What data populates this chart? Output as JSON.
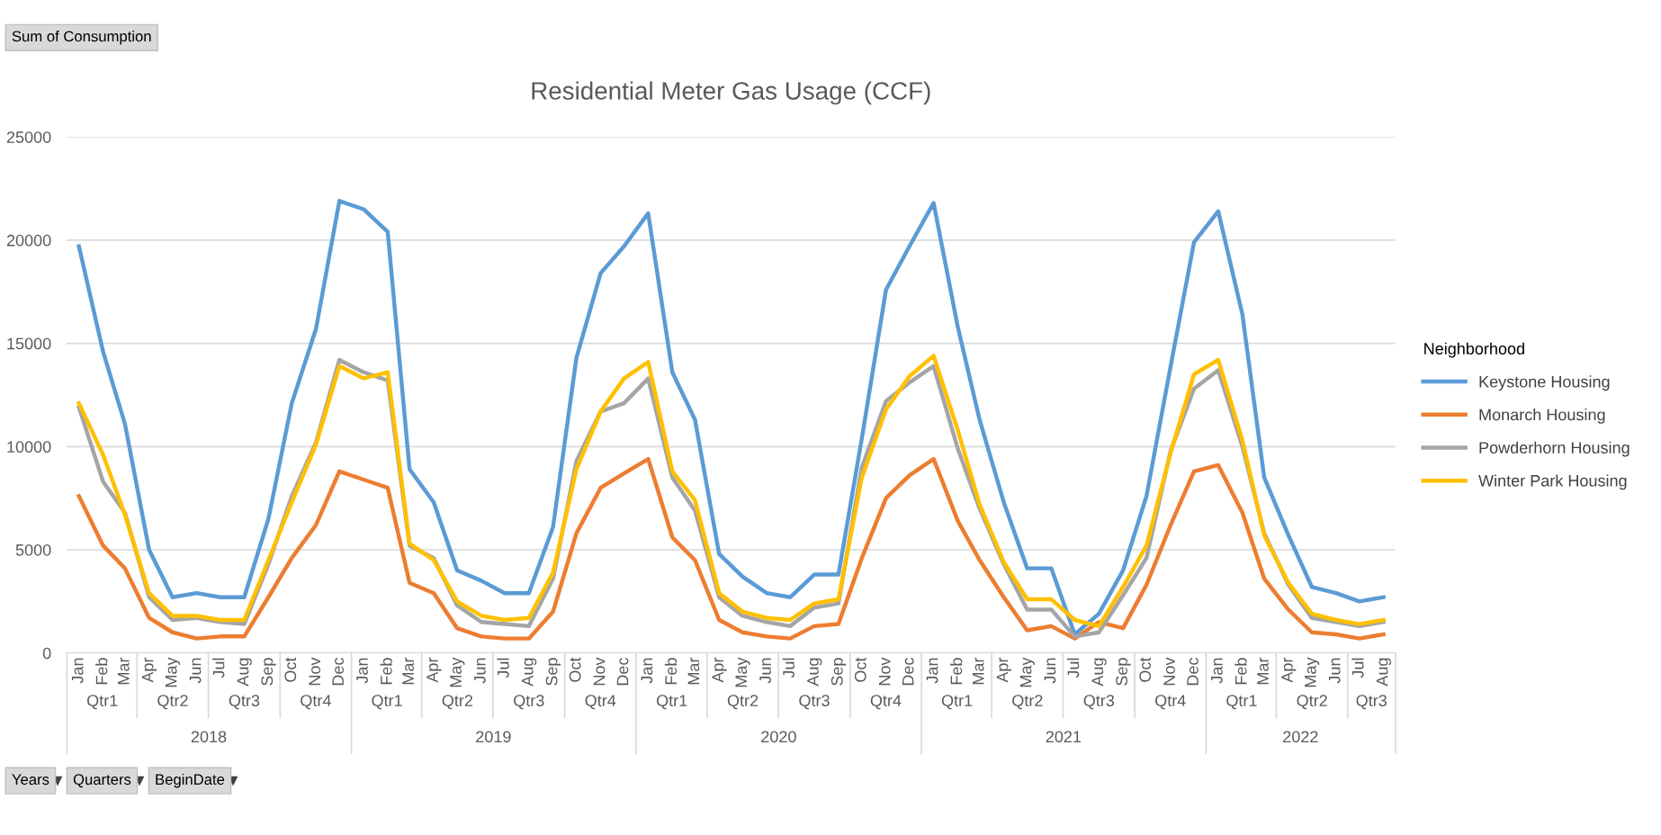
{
  "chart_data": {
    "type": "line",
    "title": "Residential Meter Gas Usage (CCF)",
    "legend_title": "Neighborhood",
    "legend": "right",
    "grid": "y",
    "marker": "none",
    "line_style": "solid",
    "x": [
      "2018-01",
      "2018-02",
      "2018-03",
      "2018-04",
      "2018-05",
      "2018-06",
      "2018-07",
      "2018-08",
      "2018-09",
      "2018-10",
      "2018-11",
      "2018-12",
      "2019-01",
      "2019-02",
      "2019-03",
      "2019-04",
      "2019-05",
      "2019-06",
      "2019-07",
      "2019-08",
      "2019-09",
      "2019-10",
      "2019-11",
      "2019-12",
      "2020-01",
      "2020-02",
      "2020-03",
      "2020-04",
      "2020-05",
      "2020-06",
      "2020-07",
      "2020-08",
      "2020-09",
      "2020-10",
      "2020-11",
      "2020-12",
      "2021-01",
      "2021-02",
      "2021-03",
      "2021-04",
      "2021-05",
      "2021-06",
      "2021-07",
      "2021-08",
      "2021-09",
      "2021-10",
      "2021-11",
      "2021-12",
      "2022-01",
      "2022-02",
      "2022-03",
      "2022-04",
      "2022-05",
      "2022-06",
      "2022-07",
      "2022-08"
    ],
    "xlim": [
      "2017-12-16",
      "2022-08-16"
    ],
    "xticks": [
      {
        "value": "2018-01",
        "label": "Jan"
      },
      {
        "value": "2018-02",
        "label": "Feb"
      },
      {
        "value": "2018-03",
        "label": "Mar"
      },
      {
        "value": "2018-04",
        "label": "Apr"
      },
      {
        "value": "2018-05",
        "label": "May"
      },
      {
        "value": "2018-06",
        "label": "Jun"
      },
      {
        "value": "2018-07",
        "label": "Jul"
      },
      {
        "value": "2018-08",
        "label": "Aug"
      },
      {
        "value": "2018-09",
        "label": "Sep"
      },
      {
        "value": "2018-10",
        "label": "Oct"
      },
      {
        "value": "2018-11",
        "label": "Nov"
      },
      {
        "value": "2018-12",
        "label": "Dec"
      },
      {
        "value": "2019-01",
        "label": "Jan"
      },
      {
        "value": "2019-02",
        "label": "Feb"
      },
      {
        "value": "2019-03",
        "label": "Mar"
      },
      {
        "value": "2019-04",
        "label": "Apr"
      },
      {
        "value": "2019-05",
        "label": "May"
      },
      {
        "value": "2019-06",
        "label": "Jun"
      },
      {
        "value": "2019-07",
        "label": "Jul"
      },
      {
        "value": "2019-08",
        "label": "Aug"
      },
      {
        "value": "2019-09",
        "label": "Sep"
      },
      {
        "value": "2019-10",
        "label": "Oct"
      },
      {
        "value": "2019-11",
        "label": "Nov"
      },
      {
        "value": "2019-12",
        "label": "Dec"
      },
      {
        "value": "2020-01",
        "label": "Jan"
      },
      {
        "value": "2020-02",
        "label": "Feb"
      },
      {
        "value": "2020-03",
        "label": "Mar"
      },
      {
        "value": "2020-04",
        "label": "Apr"
      },
      {
        "value": "2020-05",
        "label": "May"
      },
      {
        "value": "2020-06",
        "label": "Jun"
      },
      {
        "value": "2020-07",
        "label": "Jul"
      },
      {
        "value": "2020-08",
        "label": "Aug"
      },
      {
        "value": "2020-09",
        "label": "Sep"
      },
      {
        "value": "2020-10",
        "label": "Oct"
      },
      {
        "value": "2020-11",
        "label": "Nov"
      },
      {
        "value": "2020-12",
        "label": "Dec"
      },
      {
        "value": "2021-01",
        "label": "Jan"
      },
      {
        "value": "2021-02",
        "label": "Feb"
      },
      {
        "value": "2021-03",
        "label": "Mar"
      },
      {
        "value": "2021-04",
        "label": "Apr"
      },
      {
        "value": "2021-05",
        "label": "May"
      },
      {
        "value": "2021-06",
        "label": "Jun"
      },
      {
        "value": "2021-07",
        "label": "Jul"
      },
      {
        "value": "2021-08",
        "label": "Aug"
      },
      {
        "value": "2021-09",
        "label": "Sep"
      },
      {
        "value": "2021-10",
        "label": "Oct"
      },
      {
        "value": "2021-11",
        "label": "Nov"
      },
      {
        "value": "2021-12",
        "label": "Dec"
      },
      {
        "value": "2022-01",
        "label": "Jan"
      },
      {
        "value": "2022-02",
        "label": "Feb"
      },
      {
        "value": "2022-03",
        "label": "Mar"
      },
      {
        "value": "2022-04",
        "label": "Apr"
      },
      {
        "value": "2022-05",
        "label": "May"
      },
      {
        "value": "2022-06",
        "label": "Jun"
      },
      {
        "value": "2022-07",
        "label": "Jul"
      },
      {
        "value": "2022-08",
        "label": "Aug"
      }
    ],
    "ylim": [
      0,
      25000
    ],
    "yticks": [
      0,
      5000,
      10000,
      15000,
      20000,
      25000
    ],
    "series": [
      {
        "name": "Keystone Housing",
        "color": "#5b9bd5",
        "values": [
          19700,
          14600,
          11100,
          5000,
          2700,
          2900,
          2700,
          2700,
          6500,
          12100,
          15700,
          21900,
          21500,
          20400,
          8900,
          7300,
          4000,
          3500,
          2900,
          2900,
          6100,
          14300,
          18400,
          19700,
          21300,
          13600,
          11300,
          4800,
          3700,
          2900,
          2700,
          3800,
          3800,
          10400,
          17600,
          19700,
          21800,
          15800,
          11300,
          7300,
          4100,
          4100,
          900,
          1900,
          4000,
          7600,
          13900,
          19900,
          21400,
          16400,
          8500,
          5700,
          3200,
          2900,
          2500,
          2700
        ]
      },
      {
        "name": "Monarch Housing",
        "color": "#ed7d31",
        "values": [
          7600,
          5200,
          4100,
          1700,
          1000,
          700,
          800,
          800,
          2700,
          4600,
          6200,
          8800,
          8400,
          8000,
          3400,
          2900,
          1200,
          800,
          700,
          700,
          2000,
          5800,
          8000,
          8700,
          9400,
          5600,
          4500,
          1600,
          1000,
          800,
          700,
          1300,
          1400,
          4600,
          7500,
          8600,
          9400,
          6400,
          4500,
          2700,
          1100,
          1300,
          700,
          1500,
          1200,
          3300,
          6200,
          8800,
          9100,
          6800,
          3600,
          2100,
          1000,
          900,
          700,
          900
        ]
      },
      {
        "name": "Powderhorn Housing",
        "color": "#a5a5a5",
        "values": [
          11900,
          8300,
          6800,
          2700,
          1600,
          1700,
          1500,
          1400,
          4300,
          7600,
          10200,
          14200,
          13600,
          13200,
          5200,
          4600,
          2300,
          1500,
          1400,
          1300,
          3600,
          9300,
          11700,
          12100,
          13300,
          8500,
          6900,
          2700,
          1800,
          1500,
          1300,
          2200,
          2400,
          9000,
          12200,
          13100,
          13900,
          9900,
          7000,
          4300,
          2100,
          2100,
          800,
          1000,
          2800,
          4600,
          9800,
          12800,
          13700,
          10000,
          5800,
          3300,
          1700,
          1500,
          1300,
          1500
        ]
      },
      {
        "name": "Winter Park Housing",
        "color": "#ffc000",
        "values": [
          12100,
          9600,
          6700,
          2900,
          1800,
          1800,
          1600,
          1600,
          4500,
          7300,
          10100,
          13900,
          13300,
          13600,
          5300,
          4500,
          2500,
          1800,
          1600,
          1700,
          3900,
          8900,
          11700,
          13300,
          14100,
          8800,
          7400,
          2900,
          2000,
          1700,
          1600,
          2400,
          2600,
          8500,
          11800,
          13400,
          14400,
          10800,
          7200,
          4400,
          2600,
          2600,
          1600,
          1300,
          3200,
          5200,
          9700,
          13500,
          14200,
          10300,
          5700,
          3400,
          1900,
          1600,
          1400,
          1600
        ]
      }
    ],
    "annotations": [
      "Sum of Consumption",
      "Years",
      "Quarters",
      "BeginDate",
      "Qtr1",
      "Qtr2",
      "Qtr3",
      "Qtr4",
      "Qtr1",
      "Qtr2",
      "Qtr3",
      "Qtr4",
      "Qtr1",
      "Qtr2",
      "Qtr3",
      "Qtr4",
      "Qtr1",
      "Qtr2",
      "Qtr3",
      "Qtr4",
      "Qtr1",
      "Qtr2",
      "Qtr3",
      "2018",
      "2019",
      "2020",
      "2021",
      "2022"
    ]
  }
}
